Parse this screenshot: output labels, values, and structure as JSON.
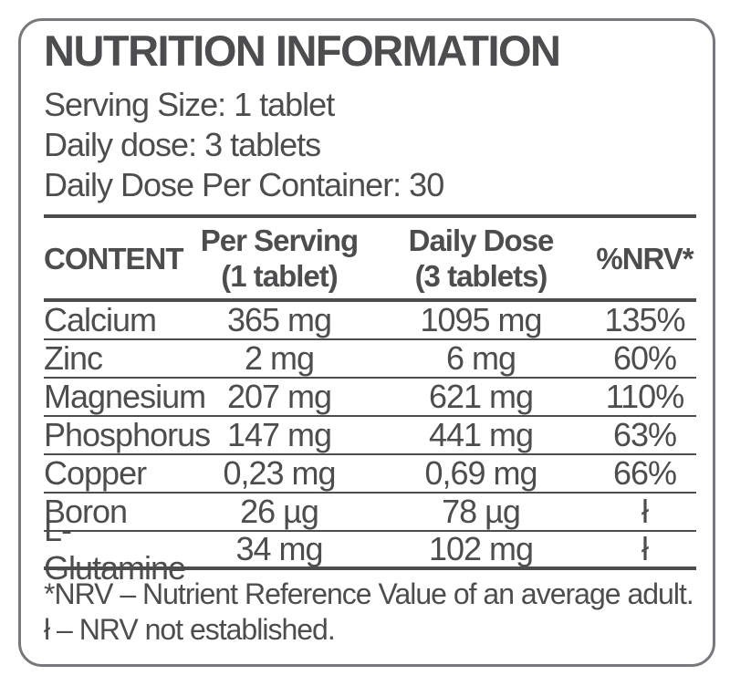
{
  "label": {
    "title": "NUTRITION INFORMATION",
    "serving_info": {
      "serving_size": "Serving Size: 1 tablet",
      "daily_dose": "Daily dose: 3 tablets",
      "daily_dose_per_container": "Daily Dose Per Container: 30"
    },
    "table": {
      "headers": {
        "content": "CONTENT",
        "per_serving_line1": "Per Serving",
        "per_serving_line2": "(1 tablet)",
        "daily_dose_line1": "Daily Dose",
        "daily_dose_line2": "(3 tablets)",
        "nrv": "%NRV*"
      },
      "rows": [
        {
          "name": "Calcium",
          "per_serving": "365 mg",
          "daily_dose": "1095 mg",
          "nrv": "135%"
        },
        {
          "name": "Zinc",
          "per_serving": "2 mg",
          "daily_dose": "6 mg",
          "nrv": "60%"
        },
        {
          "name": "Magnesium",
          "per_serving": "207 mg",
          "daily_dose": "621 mg",
          "nrv": "110%"
        },
        {
          "name": "Phosphorus",
          "per_serving": "147 mg",
          "daily_dose": "441 mg",
          "nrv": "63%"
        },
        {
          "name": "Copper",
          "per_serving": "0,23 mg",
          "daily_dose": "0,69 mg",
          "nrv": "66%"
        },
        {
          "name": "Boron",
          "per_serving": "26 µg",
          "daily_dose": "78 µg",
          "nrv": "ł"
        },
        {
          "name": "L-Glutamine",
          "per_serving": "34 mg",
          "daily_dose": "102 mg",
          "nrv": "ł"
        }
      ]
    },
    "footnotes": {
      "nrv_definition": "*NRV – Nutrient Reference Value of an average adult.",
      "not_established": "ł – NRV not established."
    },
    "colors": {
      "text": "#4d4d4f",
      "rule_line": "#4d4d4f",
      "border": "#77787b",
      "background": "#ffffff"
    }
  }
}
